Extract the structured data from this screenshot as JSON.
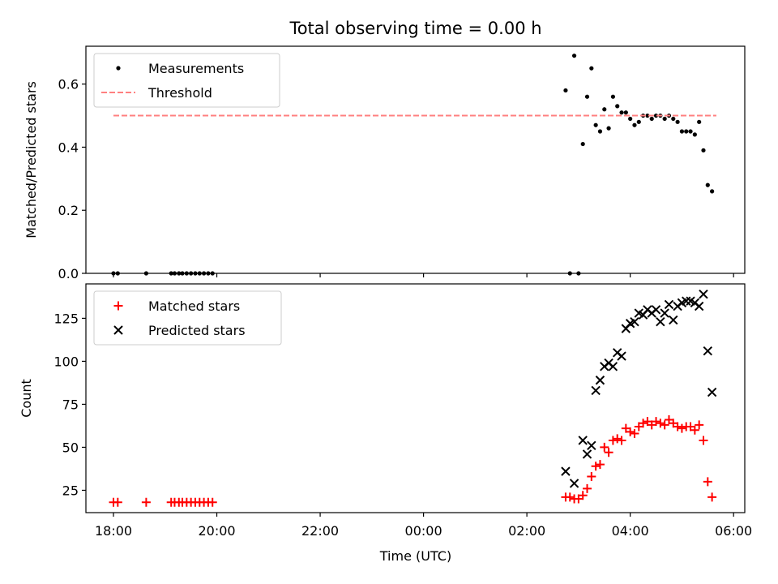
{
  "chart_data": {
    "title": "Total observing time = 0.00 h",
    "xlabel": "Time (UTC)",
    "x_unit": "hours UTC",
    "xlim": [
      "17:28",
      "06:13"
    ],
    "x_ticks": [
      "18:00",
      "20:00",
      "22:00",
      "00:00",
      "02:00",
      "04:00",
      "06:00"
    ],
    "grid": false,
    "subplots": [
      {
        "id": "top",
        "type": "scatter",
        "ylabel": "Matched/Predicted stars",
        "ylim": [
          0,
          0.72
        ],
        "y_ticks": [
          "0.0",
          "0.2",
          "0.4",
          "0.6"
        ],
        "legend_position": "top-left",
        "series": [
          {
            "name": "Measurements",
            "kind": "points",
            "color": "#000000",
            "points": [
              [
                "18:00",
                0
              ],
              [
                "18:05",
                0
              ],
              [
                "18:38",
                0
              ],
              [
                "19:07",
                0
              ],
              [
                "19:11",
                0
              ],
              [
                "19:16",
                0
              ],
              [
                "19:20",
                0
              ],
              [
                "19:25",
                0
              ],
              [
                "19:30",
                0
              ],
              [
                "19:35",
                0
              ],
              [
                "19:40",
                0
              ],
              [
                "19:45",
                0
              ],
              [
                "19:50",
                0
              ],
              [
                "19:55",
                0
              ],
              [
                "02:45",
                0.58
              ],
              [
                "02:50",
                0
              ],
              [
                "02:55",
                0.69
              ],
              [
                "03:00",
                0
              ],
              [
                "03:05",
                0.41
              ],
              [
                "03:10",
                0.56
              ],
              [
                "03:15",
                0.65
              ],
              [
                "03:20",
                0.47
              ],
              [
                "03:25",
                0.45
              ],
              [
                "03:30",
                0.52
              ],
              [
                "03:35",
                0.46
              ],
              [
                "03:40",
                0.56
              ],
              [
                "03:45",
                0.53
              ],
              [
                "03:50",
                0.51
              ],
              [
                "03:55",
                0.51
              ],
              [
                "04:00",
                0.49
              ],
              [
                "04:05",
                0.47
              ],
              [
                "04:10",
                0.48
              ],
              [
                "04:15",
                0.5
              ],
              [
                "04:20",
                0.5
              ],
              [
                "04:25",
                0.49
              ],
              [
                "04:30",
                0.5
              ],
              [
                "04:35",
                0.5
              ],
              [
                "04:40",
                0.49
              ],
              [
                "04:45",
                0.5
              ],
              [
                "04:50",
                0.49
              ],
              [
                "04:55",
                0.48
              ],
              [
                "05:00",
                0.45
              ],
              [
                "05:05",
                0.45
              ],
              [
                "05:10",
                0.45
              ],
              [
                "05:15",
                0.44
              ],
              [
                "05:20",
                0.48
              ],
              [
                "05:25",
                0.39
              ],
              [
                "05:30",
                0.28
              ],
              [
                "05:35",
                0.26
              ]
            ]
          },
          {
            "name": "Threshold",
            "kind": "dashed-line",
            "color": "#ff8080",
            "x_range": [
              "18:00",
              "05:40"
            ],
            "value": 0.5
          }
        ]
      },
      {
        "id": "bottom",
        "type": "scatter",
        "ylabel": "Count",
        "ylim": [
          12,
          145
        ],
        "y_ticks": [
          "25",
          "50",
          "75",
          "100",
          "125"
        ],
        "legend_position": "top-left",
        "series": [
          {
            "name": "Matched stars",
            "marker": "plus",
            "color": "#ff0000",
            "points": [
              [
                "18:00",
                18
              ],
              [
                "18:05",
                18
              ],
              [
                "18:38",
                18
              ],
              [
                "19:07",
                18
              ],
              [
                "19:11",
                18
              ],
              [
                "19:16",
                18
              ],
              [
                "19:20",
                18
              ],
              [
                "19:25",
                18
              ],
              [
                "19:30",
                18
              ],
              [
                "19:35",
                18
              ],
              [
                "19:40",
                18
              ],
              [
                "19:45",
                18
              ],
              [
                "19:50",
                18
              ],
              [
                "19:55",
                18
              ],
              [
                "02:45",
                21
              ],
              [
                "02:50",
                21
              ],
              [
                "02:55",
                20
              ],
              [
                "03:00",
                20
              ],
              [
                "03:05",
                22
              ],
              [
                "03:10",
                26
              ],
              [
                "03:15",
                33
              ],
              [
                "03:20",
                39
              ],
              [
                "03:25",
                40
              ],
              [
                "03:30",
                50
              ],
              [
                "03:35",
                47
              ],
              [
                "03:40",
                54
              ],
              [
                "03:45",
                55
              ],
              [
                "03:50",
                54
              ],
              [
                "03:55",
                61
              ],
              [
                "04:00",
                59
              ],
              [
                "04:05",
                58
              ],
              [
                "04:10",
                62
              ],
              [
                "04:15",
                64
              ],
              [
                "04:20",
                65
              ],
              [
                "04:25",
                63
              ],
              [
                "04:30",
                65
              ],
              [
                "04:35",
                64
              ],
              [
                "04:40",
                63
              ],
              [
                "04:45",
                66
              ],
              [
                "04:50",
                64
              ],
              [
                "04:55",
                62
              ],
              [
                "05:00",
                61
              ],
              [
                "05:05",
                62
              ],
              [
                "05:10",
                62
              ],
              [
                "05:15",
                60
              ],
              [
                "05:20",
                63
              ],
              [
                "05:25",
                54
              ],
              [
                "05:30",
                30
              ],
              [
                "05:35",
                21
              ]
            ]
          },
          {
            "name": "Predicted stars",
            "marker": "x",
            "color": "#000000",
            "points": [
              [
                "02:45",
                36
              ],
              [
                "02:55",
                29
              ],
              [
                "03:05",
                54
              ],
              [
                "03:10",
                46
              ],
              [
                "03:15",
                51
              ],
              [
                "03:20",
                83
              ],
              [
                "03:25",
                89
              ],
              [
                "03:30",
                97
              ],
              [
                "03:35",
                99
              ],
              [
                "03:40",
                97
              ],
              [
                "03:45",
                105
              ],
              [
                "03:50",
                103
              ],
              [
                "03:55",
                119
              ],
              [
                "04:00",
                122
              ],
              [
                "04:05",
                123
              ],
              [
                "04:10",
                128
              ],
              [
                "04:15",
                127
              ],
              [
                "04:20",
                130
              ],
              [
                "04:25",
                128
              ],
              [
                "04:30",
                130
              ],
              [
                "04:35",
                123
              ],
              [
                "04:40",
                128
              ],
              [
                "04:45",
                133
              ],
              [
                "04:50",
                124
              ],
              [
                "04:55",
                132
              ],
              [
                "05:00",
                134
              ],
              [
                "05:05",
                135
              ],
              [
                "05:10",
                135
              ],
              [
                "05:15",
                134
              ],
              [
                "05:20",
                132
              ],
              [
                "05:25",
                139
              ],
              [
                "05:30",
                106
              ],
              [
                "05:35",
                82
              ]
            ]
          }
        ]
      }
    ]
  }
}
